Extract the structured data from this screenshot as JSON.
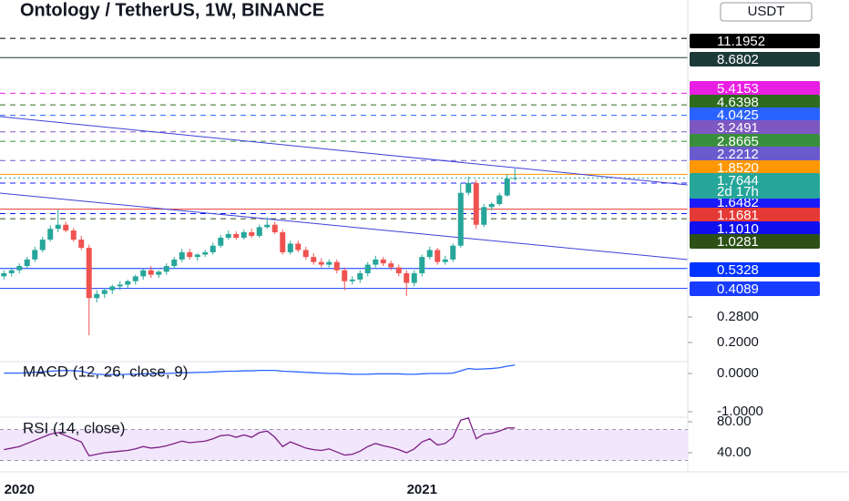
{
  "chart_data": {
    "type": "candlestick",
    "title": "Ontology / TetherUS, 1W, BINANCE",
    "currency": "USDT",
    "log_scale": true,
    "up_color": "#26a69a",
    "down_color": "#ef5350",
    "categories": [
      null,
      null,
      "2020",
      null,
      null,
      null,
      null,
      null,
      null,
      null,
      null,
      null,
      null,
      null,
      null,
      null,
      null,
      null,
      null,
      null,
      null,
      null,
      null,
      null,
      null,
      null,
      null,
      null,
      null,
      null,
      null,
      null,
      null,
      null,
      null,
      null,
      null,
      null,
      null,
      null,
      null,
      null,
      null,
      null,
      null,
      null,
      null,
      null,
      null,
      null,
      null,
      null,
      null,
      null,
      "2021",
      null,
      null,
      null,
      null,
      null,
      null,
      null,
      null,
      null,
      null,
      null,
      null
    ],
    "open": [
      0.48,
      0.5,
      0.52,
      0.55,
      0.6,
      0.68,
      0.78,
      0.9,
      0.95,
      0.88,
      0.78,
      0.7,
      0.36,
      0.38,
      0.4,
      0.42,
      0.43,
      0.45,
      0.48,
      0.52,
      0.49,
      0.51,
      0.55,
      0.6,
      0.66,
      0.62,
      0.64,
      0.66,
      0.72,
      0.8,
      0.84,
      0.8,
      0.86,
      0.82,
      0.92,
      0.95,
      0.86,
      0.66,
      0.74,
      0.68,
      0.62,
      0.58,
      0.56,
      0.58,
      0.52,
      0.45,
      0.46,
      0.5,
      0.56,
      0.6,
      0.57,
      0.54,
      0.5,
      0.44,
      0.5,
      0.62,
      0.68,
      0.58,
      0.6,
      0.72,
      1.45,
      1.65,
      0.95,
      1.2,
      1.25,
      1.4,
      1.75
    ],
    "high": [
      0.52,
      0.54,
      0.57,
      0.62,
      0.71,
      0.81,
      0.94,
      1.16,
      0.99,
      0.91,
      0.82,
      0.73,
      0.4,
      0.41,
      0.43,
      0.45,
      0.46,
      0.49,
      0.53,
      0.55,
      0.52,
      0.57,
      0.62,
      0.69,
      0.69,
      0.65,
      0.68,
      0.75,
      0.83,
      0.88,
      0.87,
      0.89,
      0.9,
      0.95,
      1.05,
      0.99,
      0.89,
      0.77,
      0.77,
      0.71,
      0.65,
      0.61,
      0.6,
      0.6,
      0.54,
      0.48,
      0.52,
      0.58,
      0.63,
      0.62,
      0.59,
      0.56,
      0.52,
      0.52,
      0.64,
      0.71,
      0.7,
      0.63,
      0.74,
      1.65,
      1.8,
      1.72,
      1.25,
      1.28,
      1.45,
      1.85,
      2.0
    ],
    "low": [
      0.46,
      0.48,
      0.5,
      0.53,
      0.58,
      0.66,
      0.76,
      0.86,
      0.86,
      0.76,
      0.68,
      0.22,
      0.34,
      0.36,
      0.38,
      0.4,
      0.41,
      0.43,
      0.46,
      0.47,
      0.47,
      0.49,
      0.53,
      0.58,
      0.6,
      0.59,
      0.62,
      0.64,
      0.7,
      0.78,
      0.78,
      0.78,
      0.8,
      0.8,
      0.9,
      0.84,
      0.64,
      0.64,
      0.66,
      0.6,
      0.56,
      0.54,
      0.54,
      0.5,
      0.4,
      0.43,
      0.44,
      0.48,
      0.54,
      0.55,
      0.52,
      0.48,
      0.37,
      0.42,
      0.48,
      0.6,
      0.56,
      0.56,
      0.58,
      0.7,
      1.4,
      0.9,
      0.92,
      1.15,
      1.22,
      1.38,
      1.7
    ],
    "close": [
      0.5,
      0.52,
      0.55,
      0.6,
      0.68,
      0.78,
      0.9,
      0.95,
      0.88,
      0.78,
      0.7,
      0.36,
      0.38,
      0.4,
      0.42,
      0.43,
      0.45,
      0.48,
      0.52,
      0.49,
      0.51,
      0.55,
      0.6,
      0.66,
      0.62,
      0.64,
      0.66,
      0.72,
      0.8,
      0.84,
      0.8,
      0.86,
      0.82,
      0.92,
      0.95,
      0.86,
      0.66,
      0.74,
      0.68,
      0.62,
      0.58,
      0.56,
      0.58,
      0.52,
      0.45,
      0.46,
      0.5,
      0.56,
      0.6,
      0.57,
      0.54,
      0.5,
      0.44,
      0.5,
      0.62,
      0.68,
      0.58,
      0.6,
      0.72,
      1.45,
      1.65,
      0.95,
      1.2,
      1.25,
      1.4,
      1.75,
      1.7644
    ],
    "countdown": "2d 17h",
    "ylim": [
      0.159,
      18.6
    ],
    "yticks": [
      {
        "value": 0.28,
        "label": "0.2800"
      },
      {
        "value": 0.2,
        "label": "0.2000"
      }
    ],
    "price_levels": [
      {
        "value": 11.1952,
        "color": "#000000",
        "line": "dashed"
      },
      {
        "value": 8.6802,
        "color": "#1c3a38",
        "line": "solid"
      },
      {
        "value": 5.4153,
        "color": "#e91ee3",
        "line": "dashed"
      },
      {
        "value": 4.6398,
        "color": "#2e6b1f",
        "line": "dashed"
      },
      {
        "value": 4.0425,
        "color": "#2962ff",
        "line": "dashed"
      },
      {
        "value": 3.2491,
        "color": "#7e57c2",
        "line": "dashed"
      },
      {
        "value": 2.8665,
        "color": "#388e3c",
        "line": "dashed"
      },
      {
        "value": 2.2212,
        "color": "#6a5acd",
        "line": "dashed"
      },
      {
        "value": 1.852,
        "label": "1.8520",
        "color": "#ff9800",
        "line": "solid"
      },
      {
        "value": 1.6482,
        "color": "#1a1aff",
        "line": "dashed"
      },
      {
        "value": 1.1681,
        "color": "#e53935",
        "line": "solid"
      },
      {
        "value": 1.101,
        "label": "1.1010",
        "color": "#1010ee",
        "line": "dashed"
      },
      {
        "value": 1.0281,
        "color": "#2d5016",
        "line": "dashed"
      },
      {
        "value": 0.5328,
        "color": "#0033ff",
        "line": "solid"
      },
      {
        "value": 0.4089,
        "color": "#1a3cff",
        "line": "solid"
      }
    ],
    "macd": {
      "title": "MACD (12, 26, close, 9)",
      "color": "#2962ff",
      "ylim": [
        -1.143,
        0.286
      ],
      "yticks": [
        {
          "value": 0,
          "label": "0.0000"
        },
        {
          "value": -1,
          "label": "-1.0000"
        }
      ],
      "values": [
        0.01,
        0.01,
        0.01,
        0.02,
        0.03,
        0.04,
        0.06,
        0.07,
        0.08,
        0.07,
        0.06,
        0.01,
        -0.02,
        -0.03,
        -0.03,
        -0.03,
        -0.02,
        -0.02,
        -0.01,
        -0.01,
        0,
        0,
        0.01,
        0.02,
        0.02,
        0.03,
        0.03,
        0.04,
        0.05,
        0.06,
        0.06,
        0.07,
        0.07,
        0.08,
        0.08,
        0.08,
        0.06,
        0.05,
        0.04,
        0.03,
        0.02,
        0.01,
        0,
        0,
        -0.01,
        -0.02,
        -0.02,
        -0.02,
        -0.01,
        -0.01,
        -0.01,
        -0.01,
        -0.02,
        -0.02,
        -0.01,
        0,
        0,
        0,
        0.01,
        0.07,
        0.13,
        0.11,
        0.12,
        0.13,
        0.15,
        0.19,
        0.22
      ]
    },
    "rsi": {
      "title": "RSI (14, close)",
      "color": "#7e1f86",
      "band": [
        30,
        70
      ],
      "band_color": "#f1e6fb",
      "ylim": [
        22.4,
        85.9
      ],
      "yticks": [
        {
          "value": 80,
          "label": "80.00"
        },
        {
          "value": 40,
          "label": "40.00"
        }
      ],
      "values": [
        44,
        46,
        48,
        52,
        56,
        60,
        64,
        66,
        62,
        58,
        54,
        36,
        38,
        40,
        41,
        42,
        43,
        45,
        48,
        46,
        47,
        49,
        52,
        55,
        53,
        54,
        55,
        58,
        62,
        63,
        60,
        63,
        60,
        66,
        68,
        60,
        48,
        54,
        50,
        46,
        44,
        43,
        45,
        41,
        37,
        38,
        42,
        48,
        52,
        49,
        47,
        44,
        40,
        45,
        54,
        58,
        50,
        52,
        60,
        82,
        85,
        58,
        64,
        65,
        68,
        72,
        72
      ]
    }
  }
}
